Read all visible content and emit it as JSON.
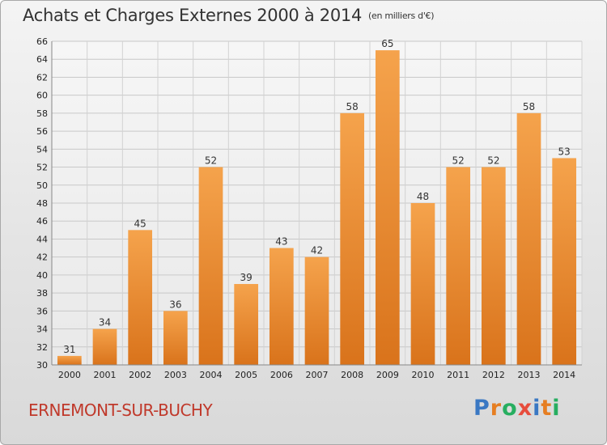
{
  "header": {
    "title": "Achats et Charges Externes 2000 à 2014",
    "subtitle": "(en milliers d'€)"
  },
  "footer": {
    "commune": "ERNEMONT-SUR-BUCHY",
    "logo_letters": [
      "P",
      "r",
      "o",
      "x",
      "i",
      "t",
      "i"
    ]
  },
  "chart_data": {
    "type": "bar",
    "title": "Achats et Charges Externes 2000 à 2014",
    "subtitle": "(en milliers d'€)",
    "categories": [
      "2000",
      "2001",
      "2002",
      "2003",
      "2004",
      "2005",
      "2006",
      "2007",
      "2008",
      "2009",
      "2010",
      "2011",
      "2012",
      "2013",
      "2014"
    ],
    "values": [
      31,
      34,
      45,
      36,
      52,
      39,
      43,
      42,
      58,
      65,
      48,
      52,
      52,
      58,
      53
    ],
    "ylim": [
      30,
      66
    ],
    "yticks": [
      30,
      32,
      34,
      36,
      38,
      40,
      42,
      44,
      46,
      48,
      50,
      52,
      54,
      56,
      58,
      60,
      62,
      64,
      66
    ],
    "grid": true,
    "bar_color": "#e98a2f"
  }
}
